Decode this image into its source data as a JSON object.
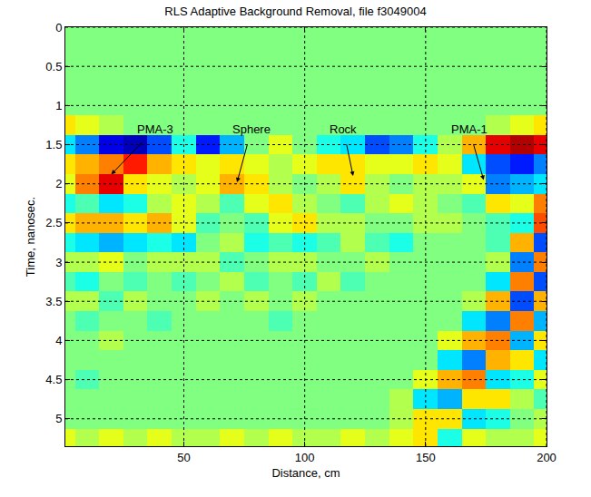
{
  "chart_data": {
    "type": "heatmap",
    "title": "RLS Adaptive Background Removal, file f3049004",
    "x_label": "Distance, cm",
    "y_label": "Time, nanosec.",
    "x": [
      0,
      10,
      20,
      30,
      40,
      50,
      60,
      70,
      80,
      90,
      100,
      110,
      120,
      130,
      140,
      150,
      160,
      170,
      180,
      190,
      200
    ],
    "y": [
      0,
      0.25,
      0.5,
      0.75,
      1,
      1.25,
      1.5,
      1.75,
      2,
      2.25,
      2.5,
      2.75,
      3,
      3.25,
      3.5,
      3.75,
      4,
      4.25,
      4.5,
      4.75,
      5,
      5.25
    ],
    "cells": [
      [
        0,
        0,
        0,
        0,
        0,
        0,
        0,
        0,
        0,
        0,
        0,
        0,
        0,
        0,
        0,
        0,
        0,
        0,
        0,
        0,
        0
      ],
      [
        0,
        0,
        0,
        0,
        0,
        0,
        0,
        0,
        0,
        0,
        0,
        0,
        0,
        0,
        0,
        0,
        0,
        0,
        0,
        0,
        0
      ],
      [
        0,
        0,
        0,
        0,
        0,
        0,
        0,
        0,
        0,
        0,
        0,
        0,
        0,
        0,
        0,
        0,
        0,
        0,
        0,
        0,
        0
      ],
      [
        0,
        0,
        0,
        0,
        0,
        0,
        0,
        0,
        0,
        0,
        0,
        0,
        0,
        0,
        0,
        0,
        0,
        0,
        0,
        0,
        0
      ],
      [
        0,
        0,
        0,
        0,
        0,
        0,
        0,
        0,
        0,
        0,
        0,
        0,
        0,
        0,
        0,
        0,
        0,
        0,
        0,
        0,
        0
      ],
      [
        0.3,
        0.2,
        0.1,
        0,
        0,
        0,
        0,
        0,
        0,
        0,
        0,
        0,
        0,
        0,
        0,
        0,
        0,
        0,
        0.1,
        0.2,
        0.3
      ],
      [
        -0.3,
        -0.5,
        -0.8,
        -0.9,
        -0.6,
        -0.2,
        -0.7,
        -0.4,
        0,
        0.2,
        0,
        -0.2,
        -0.3,
        -0.6,
        -0.5,
        -0.2,
        0.1,
        0.4,
        0.8,
        0.9,
        0.8
      ],
      [
        0.3,
        0.4,
        0.5,
        0.7,
        0.4,
        0.3,
        0.2,
        0.3,
        0.2,
        0.1,
        0.2,
        0.3,
        0.3,
        0.2,
        0.2,
        0.3,
        0.2,
        -0.3,
        -0.6,
        -0.7,
        -0.5
      ],
      [
        0.2,
        0.5,
        0.8,
        0.3,
        0.2,
        0.1,
        0.2,
        0.4,
        0.3,
        0.1,
        0,
        0.1,
        0.3,
        0.1,
        0,
        0.1,
        0.1,
        0.2,
        -0.5,
        -0.4,
        -0.3
      ],
      [
        -0.2,
        -0.1,
        -0.3,
        -0.2,
        0.1,
        0.2,
        0.1,
        -0.1,
        0.2,
        0.3,
        0.1,
        0,
        -0.1,
        0.1,
        0.2,
        0.1,
        0,
        -0.1,
        0.3,
        0.2,
        0.5
      ],
      [
        0.3,
        0.4,
        0.4,
        0.3,
        0.4,
        0.2,
        -0.1,
        0,
        -0.1,
        0.2,
        0.3,
        0.1,
        0.1,
        0,
        0,
        0.1,
        0.1,
        0,
        -0.1,
        -0.2,
        0.6
      ],
      [
        -0.2,
        -0.3,
        -0.4,
        -0.3,
        -0.2,
        -0.3,
        0,
        0.1,
        -0.2,
        -0.1,
        -0.2,
        -0.1,
        0.1,
        -0.1,
        -0.2,
        0,
        0,
        0,
        -0.1,
        0.4,
        -0.6
      ],
      [
        0.1,
        0.1,
        0.2,
        0,
        0.1,
        0.1,
        0.1,
        -0.1,
        0,
        0.1,
        0.1,
        0,
        0,
        0.1,
        0,
        0,
        0,
        0,
        0.1,
        -0.5,
        0.5
      ],
      [
        -0.1,
        -0.2,
        0,
        -0.1,
        0,
        -0.1,
        0,
        0.1,
        -0.1,
        0,
        -0.1,
        0.1,
        -0.1,
        0,
        0,
        0,
        0,
        0,
        -0.3,
        0.5,
        -0.6
      ],
      [
        0.1,
        0.1,
        -0.1,
        0.1,
        0,
        0,
        0.1,
        0,
        0.1,
        0,
        0.1,
        0,
        0,
        0,
        0,
        0,
        0,
        0.1,
        0.4,
        -0.6,
        0.4
      ],
      [
        0,
        -0.1,
        0,
        0,
        -0.1,
        0,
        0,
        0,
        0,
        -0.1,
        0,
        0,
        0,
        0,
        0,
        0,
        0,
        -0.3,
        -0.5,
        0.5,
        -0.4
      ],
      [
        0,
        0,
        0.1,
        0,
        0,
        0,
        0,
        0,
        0,
        0,
        0,
        0,
        0,
        0,
        0,
        0,
        0.2,
        0.4,
        0.5,
        -0.4,
        0.3
      ],
      [
        0,
        0,
        0,
        0,
        0,
        0,
        0,
        0,
        0,
        0,
        0,
        0,
        0,
        0,
        0,
        0,
        -0.3,
        -0.5,
        0.4,
        0.3,
        -0.3
      ],
      [
        0,
        -0.1,
        0,
        0,
        0,
        0,
        0,
        0,
        0,
        0,
        0,
        0,
        0,
        0,
        0,
        0.2,
        0.4,
        0.5,
        -0.3,
        -0.2,
        0.2
      ],
      [
        0,
        0,
        0,
        0,
        0,
        0,
        0,
        0,
        0,
        0,
        0,
        0,
        0,
        0,
        0.1,
        -0.3,
        -0.4,
        0.3,
        0.3,
        0.1,
        -0.1
      ],
      [
        0,
        0,
        0,
        0,
        0,
        0,
        0,
        0,
        0,
        0,
        0,
        0,
        0,
        0,
        0.1,
        0.3,
        0.3,
        -0.3,
        -0.2,
        0,
        0.1
      ],
      [
        0.2,
        0.1,
        0.2,
        0.1,
        0.2,
        0.1,
        0.1,
        0.2,
        0.1,
        0.2,
        0.1,
        0.1,
        0.2,
        0.1,
        0.2,
        0.3,
        -0.2,
        0.2,
        0.1,
        0.1,
        0.2
      ]
    ],
    "zlim": [
      -1,
      1
    ],
    "xlim": [
      1,
      200
    ],
    "ylim": [
      5.35,
      0
    ],
    "xticks": [
      50,
      100,
      150,
      200
    ],
    "yticks": [
      0,
      0.5,
      1,
      1.5,
      2,
      2.5,
      3,
      3.5,
      4,
      4.5,
      5
    ],
    "grid": true,
    "annotations": [
      {
        "text": "PMA-3",
        "x": 20,
        "y": 1.88,
        "text_x": 38,
        "text_y": 1.3
      },
      {
        "text": "Sphere",
        "x": 72,
        "y": 1.98,
        "text_x": 78,
        "text_y": 1.3
      },
      {
        "text": "Rock",
        "x": 120,
        "y": 1.9,
        "text_x": 116,
        "text_y": 1.3
      },
      {
        "text": "PMA-1",
        "x": 174,
        "y": 1.95,
        "text_x": 168,
        "text_y": 1.3
      }
    ]
  }
}
